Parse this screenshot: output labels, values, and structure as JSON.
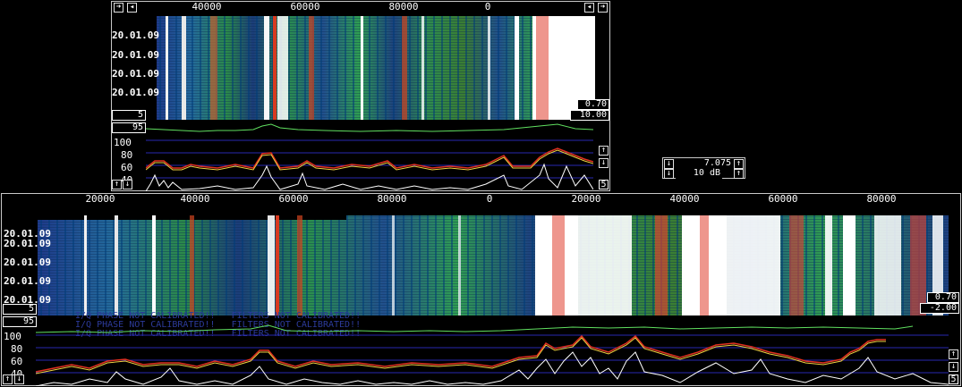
{
  "top_panel": {
    "scale_ticks": [
      "40000",
      "60000",
      "80000",
      "0"
    ],
    "dates": [
      "20.01.09",
      "20.01.09",
      "20.01.09",
      "20.01.09"
    ],
    "left_box": "5",
    "gain_box": "0.70",
    "offset_box": "10.00",
    "spectrum": {
      "avg_box": "95",
      "y_ticks": [
        "100",
        "80",
        "60",
        "40"
      ],
      "right_box": "5"
    }
  },
  "bottom_panel": {
    "scale_ticks": [
      "20000",
      "40000",
      "60000",
      "80000",
      "0",
      "20000",
      "40000",
      "60000",
      "80000"
    ],
    "dates": [
      "20.01.09",
      "20.01.09",
      "20.01.09",
      "20.01.09",
      "20.01.09"
    ],
    "left_box": "5",
    "gain_box": "0.70",
    "offset_box": "-2.00",
    "spectrum": {
      "avg_box": "95",
      "y_ticks": [
        "100",
        "80",
        "60",
        "40"
      ],
      "right_box": "5",
      "warnings": [
        "I/Q PHASE NOT CALIBRATED!!   FILTERS NOT CALIBRATED!!",
        "I/Q PHASE NOT CALIBRATED!!   FILTERS NOT CALIBRATED!!",
        "I/Q PHASE NOT CALIBRATED!!   FILTERS NOT CALIBRATED!!"
      ]
    }
  },
  "control_box": {
    "frequency": "7.075",
    "db": "10 dB"
  },
  "icons": {
    "expand": "arrow-right-icon",
    "left": "arrow-left-icon",
    "up": "arrow-up-icon",
    "down": "arrow-down-icon"
  },
  "colors": {
    "background": "#000000",
    "green_trace": "#60e060",
    "red_trace": "#e03020",
    "yellow_trace": "#f0d040",
    "white_trace": "#ffffff",
    "grid": "#2828b0",
    "warning_text": "#2c3a9a"
  }
}
